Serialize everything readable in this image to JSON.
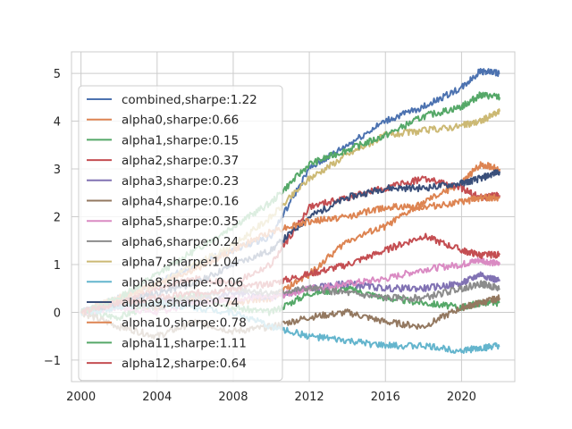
{
  "chart_data": {
    "type": "line",
    "title": "",
    "xlabel": "",
    "ylabel": "",
    "xlim": [
      1999.5,
      2022.8
    ],
    "ylim": [
      -1.45,
      5.45
    ],
    "x_ticks": [
      "2000",
      "2004",
      "2008",
      "2012",
      "2016",
      "2020"
    ],
    "y_ticks": [
      "−1",
      "0",
      "1",
      "2",
      "3",
      "4",
      "5"
    ],
    "grid": true,
    "legend_position": "center-left",
    "series": [
      {
        "name": "combined,sharpe:1.22",
        "color": "#4c72b0",
        "x": [
          2000,
          2002,
          2004,
          2006,
          2008,
          2010,
          2012,
          2014,
          2016,
          2018,
          2020,
          2021,
          2022
        ],
        "values": [
          0.0,
          0.3,
          0.6,
          1.0,
          1.3,
          1.6,
          3.0,
          3.5,
          4.0,
          4.3,
          4.7,
          5.05,
          5.0
        ]
      },
      {
        "name": "alpha0,sharpe:0.66",
        "color": "#dd8452",
        "x": [
          2000,
          2002,
          2004,
          2006,
          2008,
          2010,
          2012,
          2014,
          2016,
          2018,
          2020,
          2021,
          2022
        ],
        "values": [
          0.0,
          0.2,
          0.1,
          0.3,
          0.2,
          0.3,
          0.8,
          1.5,
          1.8,
          2.3,
          2.7,
          3.1,
          3.0
        ]
      },
      {
        "name": "alpha1,sharpe:0.15",
        "color": "#55a868",
        "x": [
          2000,
          2002,
          2004,
          2006,
          2008,
          2010,
          2012,
          2014,
          2016,
          2018,
          2020,
          2021,
          2022
        ],
        "values": [
          0.0,
          -0.1,
          0.2,
          0.4,
          0.1,
          0.0,
          0.4,
          0.5,
          0.3,
          0.2,
          0.1,
          0.2,
          0.2
        ]
      },
      {
        "name": "alpha2,sharpe:0.37",
        "color": "#c44e52",
        "x": [
          2000,
          2002,
          2004,
          2006,
          2008,
          2010,
          2012,
          2014,
          2016,
          2018,
          2020,
          2021,
          2022
        ],
        "values": [
          0.0,
          0.2,
          0.5,
          0.7,
          0.6,
          1.0,
          2.2,
          2.4,
          2.6,
          2.8,
          2.6,
          2.4,
          2.45
        ]
      },
      {
        "name": "alpha3,sharpe:0.23",
        "color": "#8172b3",
        "x": [
          2000,
          2002,
          2004,
          2006,
          2008,
          2010,
          2012,
          2014,
          2016,
          2018,
          2020,
          2021,
          2022
        ],
        "values": [
          0.0,
          0.1,
          0.3,
          0.2,
          0.4,
          0.3,
          0.5,
          0.6,
          0.5,
          0.5,
          0.6,
          0.8,
          0.65
        ]
      },
      {
        "name": "alpha4,sharpe:0.16",
        "color": "#937860",
        "x": [
          2000,
          2002,
          2004,
          2006,
          2008,
          2010,
          2012,
          2014,
          2016,
          2018,
          2020,
          2021,
          2022
        ],
        "values": [
          0.0,
          -0.3,
          -0.5,
          -0.2,
          -0.4,
          -0.3,
          -0.1,
          0.0,
          -0.2,
          -0.3,
          0.1,
          0.2,
          0.3
        ]
      },
      {
        "name": "alpha5,sharpe:0.35",
        "color": "#da8bc3",
        "x": [
          2000,
          2002,
          2004,
          2006,
          2008,
          2010,
          2012,
          2014,
          2016,
          2018,
          2020,
          2021,
          2022
        ],
        "values": [
          0.0,
          0.1,
          0.0,
          0.2,
          0.3,
          0.3,
          0.5,
          0.6,
          0.7,
          0.9,
          1.0,
          1.1,
          1.0
        ]
      },
      {
        "name": "alpha6,sharpe:0.24",
        "color": "#8c8c8c",
        "x": [
          2000,
          2002,
          2004,
          2006,
          2008,
          2010,
          2012,
          2014,
          2016,
          2018,
          2020,
          2021,
          2022
        ],
        "values": [
          0.0,
          0.2,
          0.1,
          0.3,
          0.5,
          0.4,
          0.5,
          0.4,
          0.3,
          0.3,
          0.5,
          0.6,
          0.5
        ]
      },
      {
        "name": "alpha7,sharpe:1.04",
        "color": "#ccb974",
        "x": [
          2000,
          2002,
          2004,
          2006,
          2008,
          2010,
          2012,
          2014,
          2016,
          2018,
          2020,
          2021,
          2022
        ],
        "values": [
          0.0,
          0.3,
          0.6,
          1.0,
          1.4,
          2.0,
          2.8,
          3.3,
          3.7,
          3.8,
          3.9,
          4.0,
          4.2
        ]
      },
      {
        "name": "alpha8,sharpe:-0.06",
        "color": "#64b5cd",
        "x": [
          2000,
          2002,
          2004,
          2006,
          2008,
          2010,
          2012,
          2014,
          2016,
          2018,
          2020,
          2021,
          2022
        ],
        "values": [
          0.0,
          0.1,
          0.2,
          0.1,
          0.0,
          -0.3,
          -0.5,
          -0.6,
          -0.7,
          -0.7,
          -0.8,
          -0.75,
          -0.7
        ]
      },
      {
        "name": "alpha9,sharpe:0.74",
        "color": "#3a4f7a",
        "x": [
          2000,
          2002,
          2004,
          2006,
          2008,
          2010,
          2012,
          2014,
          2016,
          2018,
          2020,
          2021,
          2022
        ],
        "values": [
          0.0,
          0.2,
          0.4,
          0.6,
          1.0,
          1.3,
          2.0,
          2.4,
          2.6,
          2.6,
          2.7,
          2.8,
          2.95
        ]
      },
      {
        "name": "alpha10,sharpe:0.78",
        "color": "#dd8452",
        "x": [
          2000,
          2002,
          2004,
          2006,
          2008,
          2010,
          2012,
          2014,
          2016,
          2018,
          2020,
          2021,
          2022
        ],
        "values": [
          0.0,
          0.3,
          0.6,
          0.9,
          1.3,
          1.7,
          1.9,
          2.0,
          2.2,
          2.2,
          2.3,
          2.4,
          2.4
        ]
      },
      {
        "name": "alpha11,sharpe:1.11",
        "color": "#55a868",
        "x": [
          2000,
          2002,
          2004,
          2006,
          2008,
          2010,
          2012,
          2014,
          2016,
          2018,
          2020,
          2021,
          2022
        ],
        "values": [
          0.0,
          0.3,
          0.8,
          1.3,
          1.8,
          2.3,
          3.1,
          3.4,
          3.7,
          4.1,
          4.3,
          4.55,
          4.5
        ]
      },
      {
        "name": "alpha12,sharpe:0.64",
        "color": "#c44e52",
        "x": [
          2000,
          2002,
          2004,
          2006,
          2008,
          2010,
          2012,
          2014,
          2016,
          2018,
          2020,
          2021,
          2022
        ],
        "values": [
          0.0,
          0.2,
          0.3,
          0.4,
          0.5,
          0.6,
          0.8,
          1.0,
          1.3,
          1.6,
          1.3,
          1.2,
          1.2
        ]
      }
    ]
  }
}
